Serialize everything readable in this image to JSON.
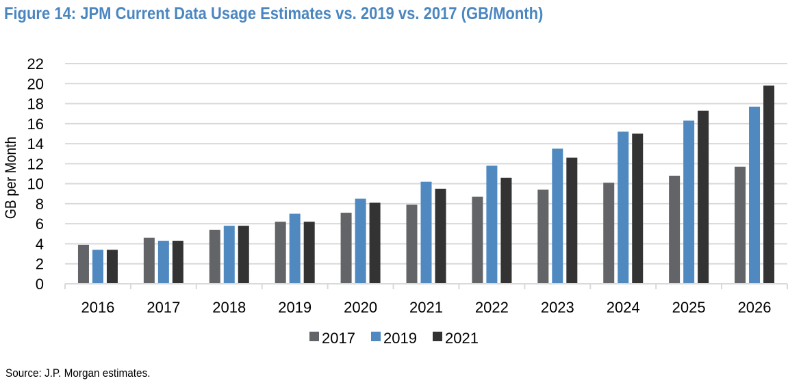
{
  "title": "Figure 14: JPM Current Data Usage Estimates vs. 2019 vs. 2017 (GB/Month)",
  "source": "Source: J.P. Morgan estimates.",
  "chart_data": {
    "type": "bar",
    "title": "Figure 14: JPM Current Data Usage Estimates vs. 2019 vs. 2017 (GB/Month)",
    "xlabel": "",
    "ylabel": "GB per Month",
    "ylim": [
      0,
      22
    ],
    "yticks": [
      0,
      2,
      4,
      6,
      8,
      10,
      12,
      14,
      16,
      18,
      20,
      22
    ],
    "grid": true,
    "legend": "bottom-center",
    "categories": [
      "2016",
      "2017",
      "2018",
      "2019",
      "2020",
      "2021",
      "2022",
      "2023",
      "2024",
      "2025",
      "2026"
    ],
    "series": [
      {
        "name": "2017",
        "color": "#636468",
        "values": [
          3.9,
          4.6,
          5.4,
          6.2,
          7.1,
          7.9,
          8.7,
          9.4,
          10.1,
          10.8,
          11.7
        ]
      },
      {
        "name": "2019",
        "color": "#4f89c0",
        "values": [
          3.4,
          4.3,
          5.8,
          7.0,
          8.5,
          10.2,
          11.8,
          13.5,
          15.2,
          16.3,
          17.7
        ]
      },
      {
        "name": "2021",
        "color": "#333333",
        "values": [
          3.4,
          4.3,
          5.8,
          6.2,
          8.1,
          9.5,
          10.6,
          12.6,
          15.0,
          17.3,
          19.8
        ]
      }
    ]
  }
}
